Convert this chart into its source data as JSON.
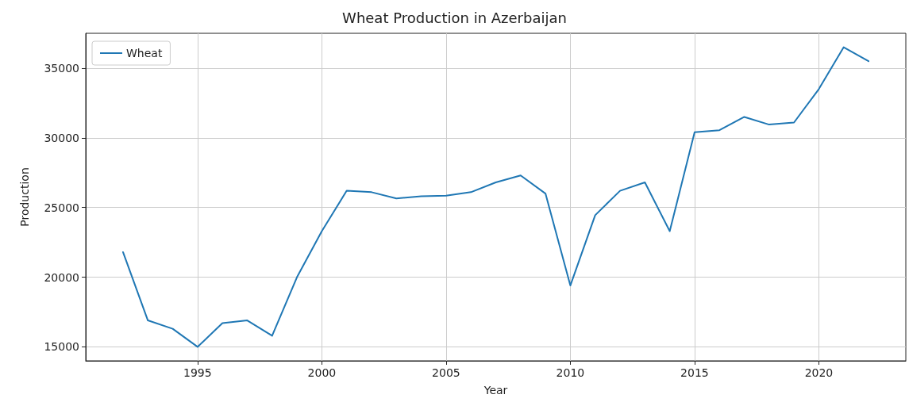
{
  "chart_data": {
    "type": "line",
    "title": "Wheat Production in Azerbaijan",
    "xlabel": "Year",
    "ylabel": "Production",
    "x": [
      1992,
      1993,
      1994,
      1995,
      1996,
      1997,
      1998,
      1999,
      2000,
      2001,
      2002,
      2003,
      2004,
      2005,
      2006,
      2007,
      2008,
      2009,
      2010,
      2011,
      2012,
      2013,
      2014,
      2015,
      2016,
      2017,
      2018,
      2019,
      2020,
      2021,
      2022
    ],
    "series": [
      {
        "name": "Wheat",
        "color": "#1f77b4",
        "values": [
          21800,
          16900,
          16300,
          15000,
          16700,
          16900,
          15800,
          20000,
          23300,
          26200,
          26100,
          25650,
          25800,
          25850,
          26100,
          26800,
          27300,
          26000,
          19400,
          24450,
          26200,
          26800,
          23300,
          30400,
          30550,
          31500,
          30950,
          31100,
          33500,
          36500,
          35500
        ]
      }
    ],
    "xlim": [
      1990.5,
      2023.5
    ],
    "xticks": [
      1995,
      2000,
      2005,
      2010,
      2015,
      2020
    ],
    "ylim": [
      14000,
      37500
    ],
    "yticks": [
      15000,
      20000,
      25000,
      30000,
      35000
    ],
    "grid": true,
    "legend": "top left",
    "marker": "none",
    "line_style": "solid"
  }
}
